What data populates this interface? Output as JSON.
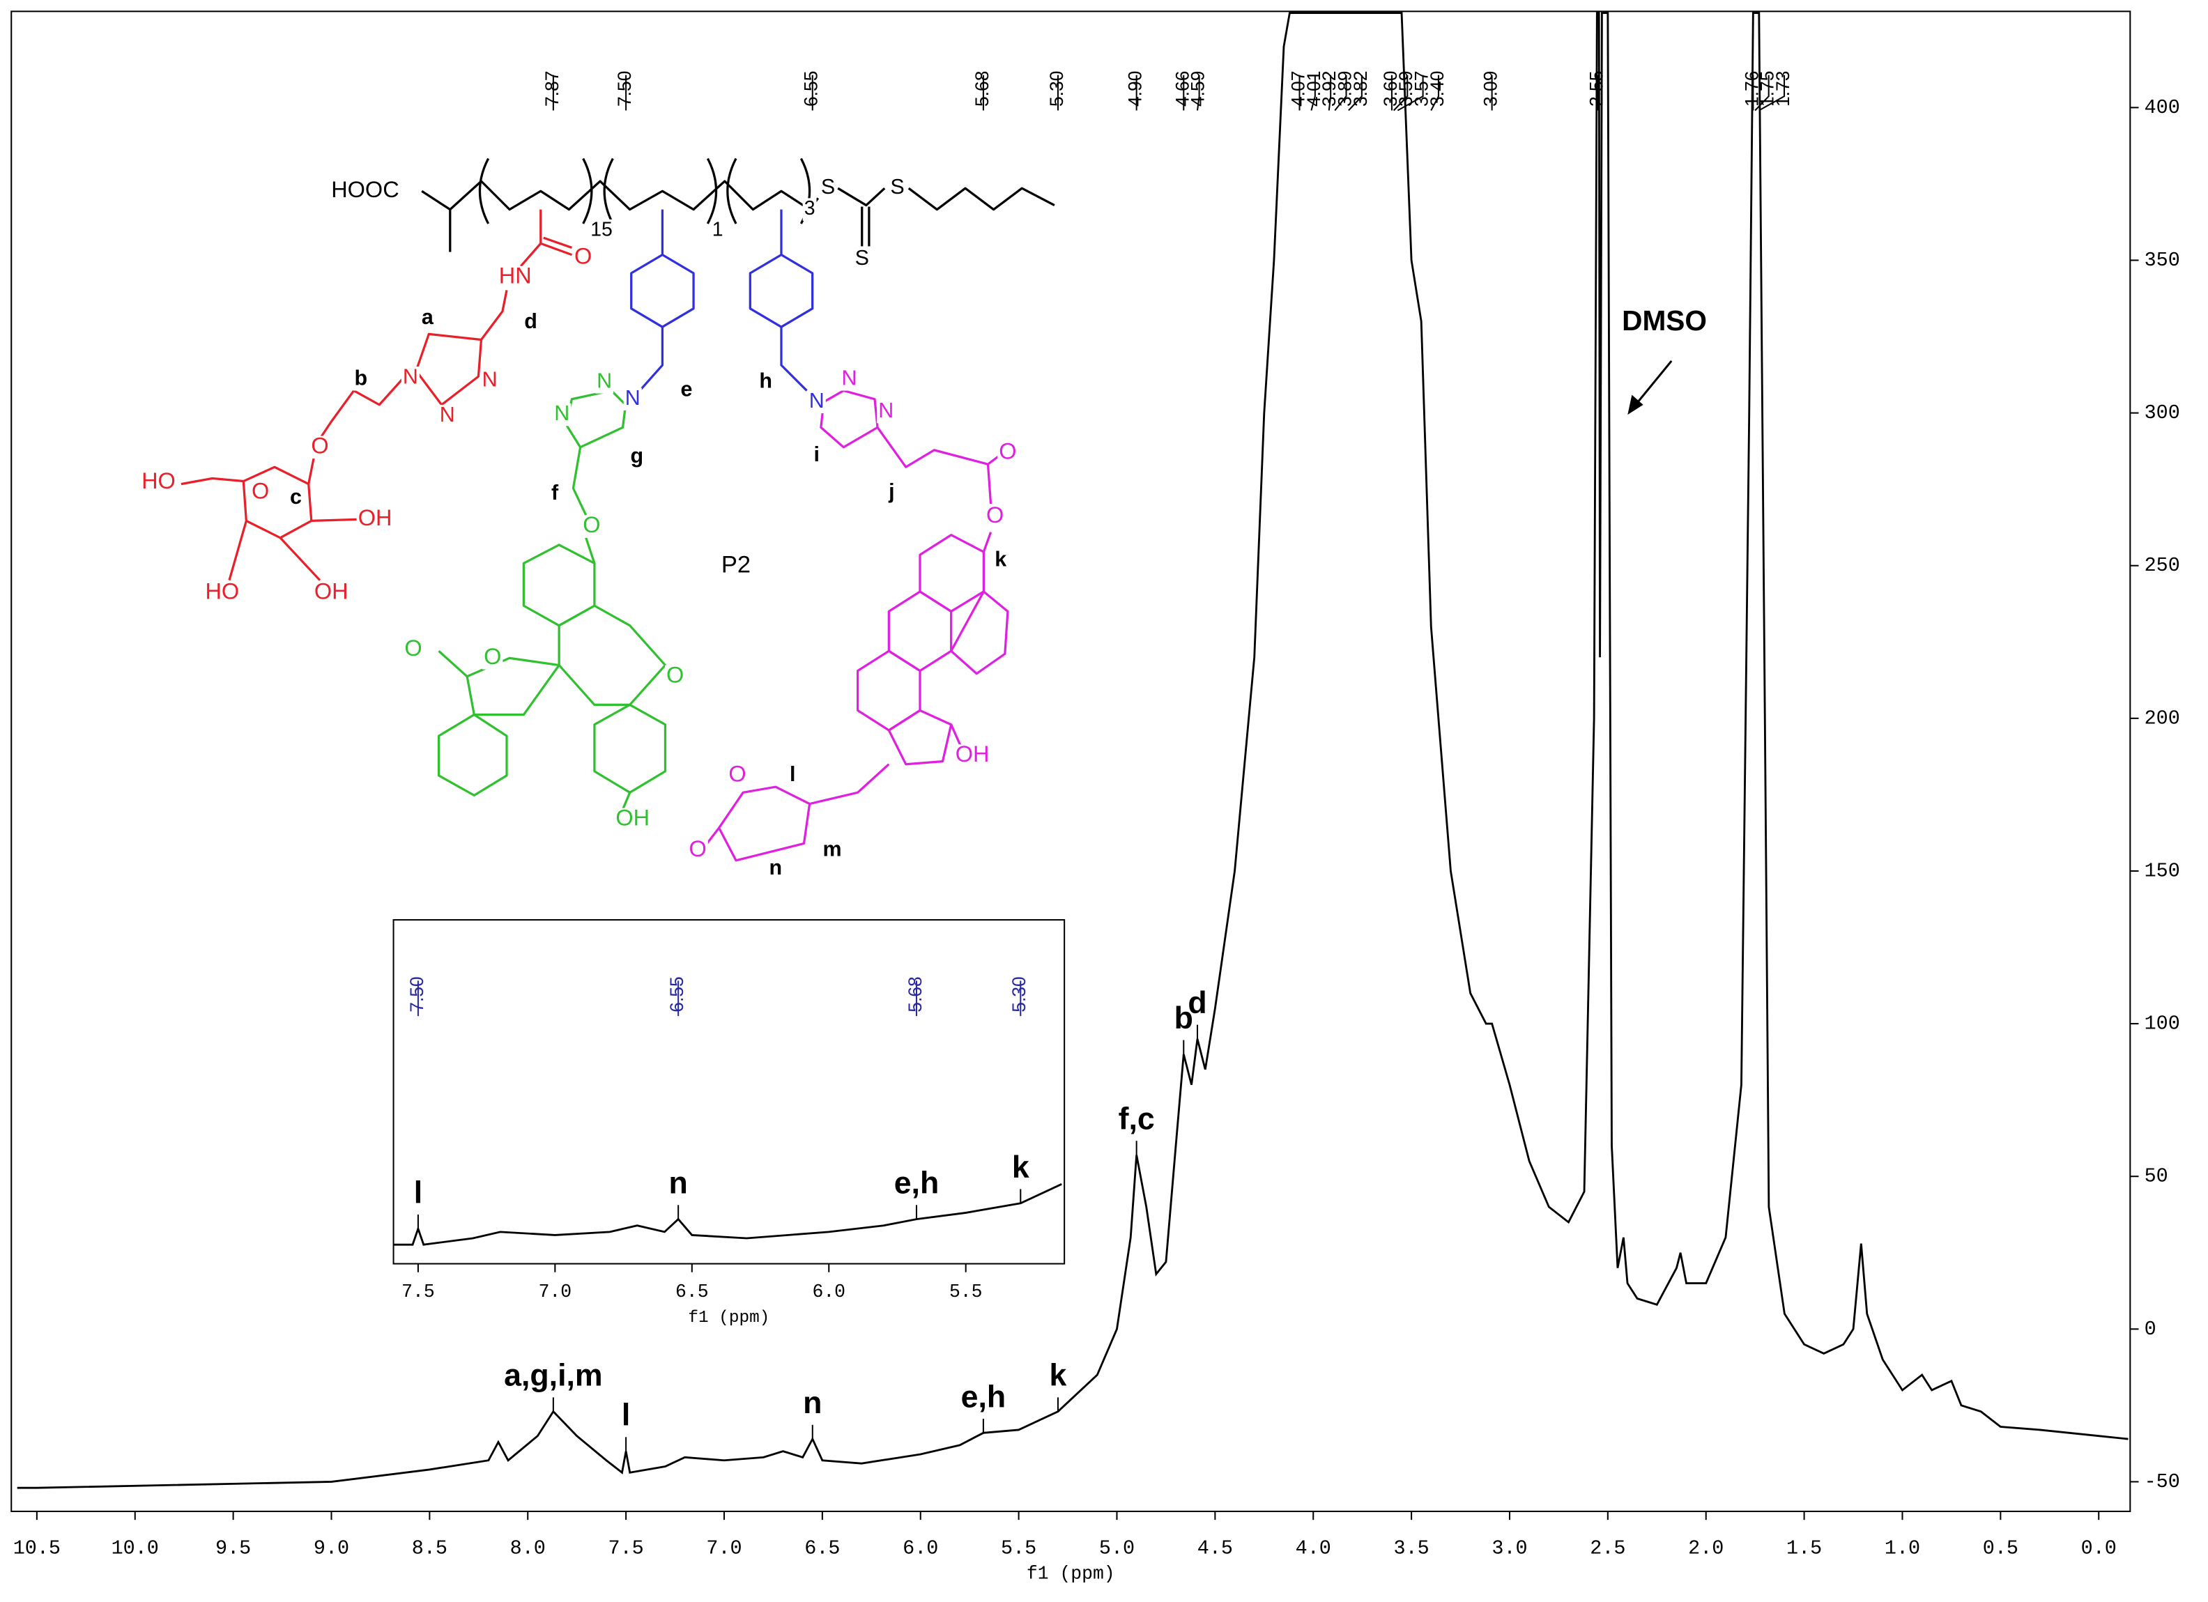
{
  "chart_data": [
    {
      "type": "line",
      "xlabel": "f1 (ppm)",
      "x": [
        10.6,
        10.5,
        9.0,
        8.5,
        8.2,
        8.15,
        8.1,
        7.95,
        7.87,
        7.75,
        7.6,
        7.52,
        7.5,
        7.48,
        7.3,
        7.2,
        7.0,
        6.8,
        6.7,
        6.6,
        6.55,
        6.5,
        6.3,
        6.0,
        5.8,
        5.68,
        5.5,
        5.3,
        5.1,
        5.0,
        4.93,
        4.9,
        4.85,
        4.8,
        4.75,
        4.7,
        4.66,
        4.62,
        4.59,
        4.55,
        4.5,
        4.4,
        4.3,
        4.25,
        4.2,
        4.15,
        4.12,
        3.55,
        3.5,
        3.45,
        3.4,
        3.3,
        3.2,
        3.12,
        3.09,
        3.0,
        2.9,
        2.8,
        2.7,
        2.62,
        2.57,
        2.555,
        2.545,
        2.54,
        2.53,
        2.5,
        2.48,
        2.45,
        2.42,
        2.4,
        2.35,
        2.25,
        2.15,
        2.13,
        2.1,
        2.0,
        1.9,
        1.82,
        1.78,
        1.76,
        1.73,
        1.7,
        1.68,
        1.6,
        1.5,
        1.4,
        1.3,
        1.25,
        1.21,
        1.18,
        1.1,
        1.0,
        0.9,
        0.85,
        0.75,
        0.7,
        0.6,
        0.5,
        0.3,
        0.0,
        -0.15
      ],
      "series": [
        {
          "color": "#000000",
          "values": [
            -52,
            -52,
            -50,
            -46,
            -43,
            -37,
            -43,
            -35,
            -27,
            -35,
            -43,
            -47,
            -40,
            -47,
            -45,
            -42,
            -43,
            -42,
            -40,
            -42,
            -36,
            -43,
            -44,
            -41,
            -38,
            -34,
            -33,
            -27,
            -15,
            0,
            30,
            57,
            40,
            18,
            22,
            60,
            90,
            80,
            95,
            85,
            105,
            150,
            220,
            300,
            350,
            420,
            431,
            431,
            350,
            330,
            230,
            150,
            110,
            100,
            100,
            80,
            55,
            40,
            35,
            45,
            200,
            431,
            431,
            220,
            431,
            431,
            60,
            20,
            30,
            15,
            10,
            8,
            20,
            25,
            15,
            15,
            30,
            80,
            300,
            431,
            431,
            200,
            40,
            5,
            -5,
            -8,
            -5,
            0,
            28,
            5,
            -10,
            -20,
            -15,
            -20,
            -17,
            -25,
            -27,
            -32,
            -33,
            -35,
            -36
          ]
        }
      ],
      "xlim": [
        10.63,
        -0.16
      ],
      "ylim": [
        -59.7,
        431.5
      ],
      "xticks": [
        10.5,
        {
          "value": 10,
          "label": "10.0"
        },
        9.5,
        {
          "value": 9,
          "label": "9.0"
        },
        8.5,
        {
          "value": 8,
          "label": "8.0"
        },
        7.5,
        {
          "value": 7,
          "label": "7.0"
        },
        6.5,
        {
          "value": 6,
          "label": "6.0"
        },
        5.5,
        {
          "value": 5,
          "label": "5.0"
        },
        4.5,
        {
          "value": 4,
          "label": "4.0"
        },
        3.5,
        {
          "value": 3,
          "label": "3.0"
        },
        2.5,
        {
          "value": 2,
          "label": "2.0"
        },
        1.5,
        {
          "value": 1,
          "label": "1.0"
        },
        0.5,
        {
          "value": 0,
          "label": "0.0"
        }
      ],
      "yticks": [
        -50,
        0,
        50,
        100,
        150,
        200,
        250,
        300,
        350,
        400
      ],
      "peak_labels": [
        7.87,
        {
          "value": 7.5,
          "label": "7.50"
        },
        6.55,
        5.68,
        {
          "value": 5.3,
          "label": "5.30"
        },
        {
          "value": 4.9,
          "label": "4.90"
        },
        4.66,
        4.59,
        4.07,
        4.01,
        3.92,
        3.89,
        3.82,
        {
          "value": 3.6,
          "label": "3.60"
        },
        3.59,
        3.57,
        {
          "value": 3.4,
          "label": "3.40"
        },
        3.09,
        2.55,
        1.76,
        1.75,
        1.73
      ],
      "annotations": [
        {
          "text": "a,g,i,m",
          "x": 7.87
        },
        {
          "text": "l",
          "x": 7.5
        },
        {
          "text": "n",
          "x": 6.55
        },
        {
          "text": "e,h",
          "x": 5.68
        },
        {
          "text": "k",
          "x": 5.3
        },
        {
          "text": "f,c",
          "x": 4.9
        },
        {
          "text": "b",
          "x": 4.66
        },
        {
          "text": "d",
          "x": 4.59
        }
      ],
      "dmso": {
        "text": "DMSO",
        "x": 2.5
      }
    },
    {
      "type": "line",
      "xlabel": "f1 (ppm)",
      "x": [
        7.6,
        7.52,
        7.5,
        7.48,
        7.3,
        7.2,
        7.0,
        6.8,
        6.7,
        6.6,
        6.55,
        6.5,
        6.3,
        6.0,
        5.8,
        5.68,
        5.5,
        5.3,
        5.15
      ],
      "series": [
        {
          "color": "#000000",
          "values": [
            -47,
            -47,
            -42,
            -47,
            -45,
            -43,
            -44,
            -43,
            -41,
            -43,
            -39,
            -44,
            -45,
            -43,
            -41,
            -39,
            -37,
            -34,
            -28
          ]
        }
      ],
      "xlim": [
        7.59,
        5.14
      ],
      "ylim": [
        -53,
        55
      ],
      "xticks": [
        7.5,
        {
          "value": 7,
          "label": "7.0"
        },
        6.5,
        {
          "value": 6,
          "label": "6.0"
        },
        5.5
      ],
      "peak_labels": [
        {
          "value": 7.5,
          "label": "7.50"
        },
        6.55,
        5.68,
        {
          "value": 5.3,
          "label": "5.30"
        }
      ],
      "annotations": [
        {
          "text": "l",
          "x": 7.5
        },
        {
          "text": "n",
          "x": 6.55
        },
        {
          "text": "e,h",
          "x": 5.68
        },
        {
          "text": "k",
          "x": 5.3
        }
      ]
    }
  ],
  "structure": {
    "labels": [
      "HOOC",
      "15",
      "1",
      "3",
      "S",
      "S",
      "S",
      "HN",
      "O",
      "a",
      "d",
      "b",
      "N",
      "N",
      "N",
      "O",
      "HO",
      "c",
      "O",
      "OH",
      "HO",
      "OH",
      "e",
      "N",
      "N",
      "N",
      "g",
      "f",
      "O",
      "O",
      "O",
      "O",
      "OH",
      "P2",
      "h",
      "N",
      "N",
      "N",
      "i",
      "j",
      "O",
      "O",
      "k",
      "OH",
      "O",
      "l",
      "O",
      "n",
      "m"
    ]
  }
}
